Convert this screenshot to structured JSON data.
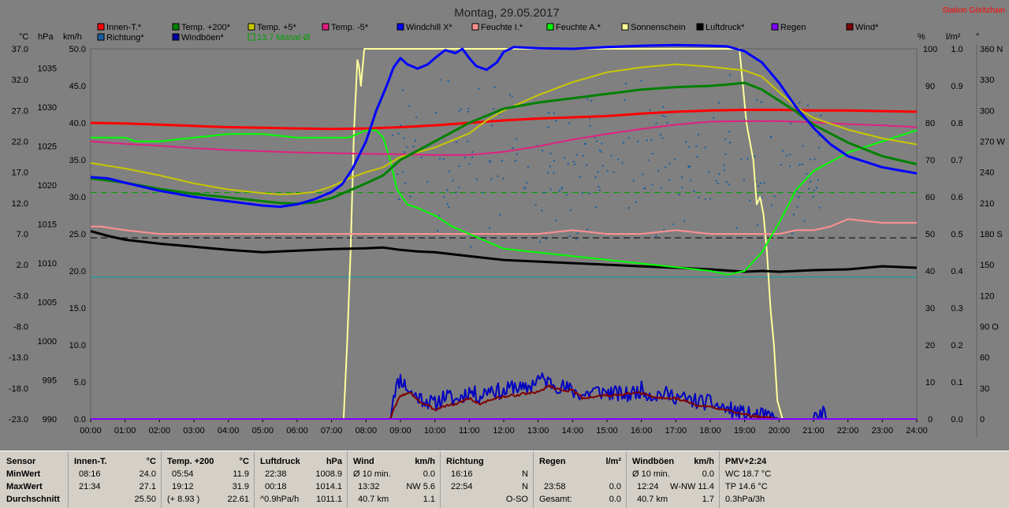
{
  "header": {
    "date": "Montag, 29.05.2017",
    "station": "Station Göritzhain"
  },
  "colors": {
    "background": "#808080",
    "plot_bg": "#808080",
    "innen": "#ff0000",
    "temp200": "#008000",
    "temp5": "#c8c800",
    "temp_minus5": "#e0207f",
    "windchill": "#0000ff",
    "feuchte_i": "#ff9090",
    "feuchte_a": "#00ff00",
    "sonne": "#ffff99",
    "luftdruck": "#000000",
    "regen": "#8000ff",
    "wind": "#800000",
    "richtung": "#1a5fa0",
    "windboeen": "#0000a0",
    "monat": "#00a000",
    "station_text": "#ff0000"
  },
  "legend": [
    {
      "label": "Innen-T.*",
      "color": "#ff0000"
    },
    {
      "label": "Temp. +200*",
      "color": "#008000"
    },
    {
      "label": "Temp. +5*",
      "color": "#c8c800"
    },
    {
      "label": "Temp. -5*",
      "color": "#e0207f"
    },
    {
      "label": "Windchill X*",
      "color": "#0000ff"
    },
    {
      "label": "Feuchte I.*",
      "color": "#ff9090"
    },
    {
      "label": "Feuchte A.*",
      "color": "#00ff00"
    },
    {
      "label": "Sonnenschein",
      "color": "#ffff99"
    },
    {
      "label": "Luftdruck*",
      "color": "#000000"
    },
    {
      "label": "Regen",
      "color": "#8000ff"
    },
    {
      "label": "Wind*",
      "color": "#800000"
    },
    {
      "label": "Richtung*",
      "color": "#1a5fa0"
    },
    {
      "label": "Windböen*",
      "color": "#0000a0"
    },
    {
      "label": "13.7 Monat-Ø",
      "color": "#00a000",
      "outline": true
    }
  ],
  "axis_units": {
    "temp": "°C",
    "pressure": "hPa",
    "wind": "km/h",
    "percent": "%",
    "rain": "l/m²",
    "deg": "°"
  },
  "chart_data": {
    "type": "line",
    "title": "Montag, 29.05.2017",
    "x_ticks": [
      "00:00",
      "01:00",
      "02:00",
      "03:00",
      "04:00",
      "05:00",
      "06:00",
      "07:00",
      "08:00",
      "09:00",
      "10:00",
      "11:00",
      "12:00",
      "13:00",
      "14:00",
      "15:00",
      "16:00",
      "17:00",
      "18:00",
      "19:00",
      "20:00",
      "21:00",
      "22:00",
      "23:00",
      "24:00"
    ],
    "xlim": [
      0,
      24
    ],
    "axes": {
      "temp_ticks": [
        "37.0",
        "32.0",
        "27.0",
        "22.0",
        "17.0",
        "12.0",
        "7.0",
        "2.0",
        "-3.0",
        "-8.0",
        "-13.0",
        "-18.0",
        "-23.0"
      ],
      "temp_range": [
        -23,
        37
      ],
      "hpa_ticks": [
        "1035",
        "1030",
        "1025",
        "1020",
        "1015",
        "1010",
        "1005",
        "1000",
        "995",
        "990"
      ],
      "hpa_range": [
        990,
        1037.5
      ],
      "wind_ticks": [
        "50.0",
        "45.0",
        "40.0",
        "35.0",
        "30.0",
        "25.0",
        "20.0",
        "15.0",
        "10.0",
        "5.0",
        "0.0"
      ],
      "wind_range": [
        0,
        50
      ],
      "pct_ticks": [
        "100",
        "90",
        "80",
        "70",
        "60",
        "50",
        "40",
        "30",
        "20",
        "10",
        "0"
      ],
      "pct_range": [
        0,
        100
      ],
      "rain_ticks": [
        "1.0",
        "0.9",
        "0.8",
        "0.7",
        "0.6",
        "0.5",
        "0.4",
        "0.3",
        "0.2",
        "0.1",
        "0.0"
      ],
      "rain_range": [
        0,
        1
      ],
      "deg_ticks": [
        "360 N",
        "330",
        "300",
        "270 W",
        "240",
        "210",
        "180 S",
        "150",
        "120",
        "90 O",
        "60",
        "30",
        "0"
      ],
      "deg_range": [
        0,
        360
      ]
    },
    "reference_lines": [
      {
        "axis": "temp",
        "y": 13.7,
        "color": "#00a000",
        "dash": true
      },
      {
        "axis": "hpa",
        "y": 1013.25,
        "color": "#000000",
        "dash": true
      },
      {
        "axis": "temp",
        "y": 0,
        "color": "#00a0a0",
        "dash": false
      }
    ],
    "series": [
      {
        "name": "Sonnenschein",
        "axis": "pct",
        "color": "#ffff99",
        "width": 2,
        "x": [
          0,
          7.35,
          7.45,
          7.55,
          7.65,
          7.75,
          7.8,
          7.85,
          7.9,
          7.95,
          8.0,
          18.85,
          18.95,
          19.05,
          19.15,
          19.25,
          19.35,
          19.45,
          19.55,
          19.65,
          19.75,
          19.85,
          19.95,
          20.1,
          24
        ],
        "y": [
          0,
          0,
          20,
          45,
          78,
          97,
          95,
          90,
          95,
          100,
          100,
          100,
          90,
          80,
          75,
          70,
          58,
          60,
          55,
          45,
          30,
          20,
          5,
          0,
          0
        ]
      },
      {
        "name": "Luftdruck*",
        "axis": "hpa",
        "color": "#000000",
        "width": 3,
        "x": [
          0,
          0.5,
          1,
          2,
          3,
          4,
          5,
          6,
          7,
          8,
          8.5,
          9,
          9.5,
          10,
          11,
          12,
          13,
          14,
          15,
          16,
          17,
          18,
          19,
          19.5,
          20,
          20.5,
          21,
          22,
          23,
          24
        ],
        "y": [
          1014.1,
          1013.5,
          1013.0,
          1012.5,
          1012.1,
          1011.7,
          1011.4,
          1011.6,
          1011.8,
          1011.9,
          1012.0,
          1011.7,
          1011.5,
          1011.4,
          1010.9,
          1010.4,
          1010.2,
          1010.0,
          1009.8,
          1009.6,
          1009.4,
          1009.2,
          1008.9,
          1009.0,
          1008.9,
          1009.0,
          1009.1,
          1009.2,
          1009.6,
          1009.4
        ]
      },
      {
        "name": "Feuchte I.*",
        "axis": "pct",
        "color": "#ff9090",
        "width": 2,
        "x": [
          0,
          0.3,
          1,
          2,
          3,
          4,
          5,
          6,
          7,
          8,
          9,
          10,
          11,
          12,
          13,
          14,
          15,
          16,
          17,
          18,
          19,
          20,
          20.5,
          21,
          21.5,
          22,
          23,
          24
        ],
        "y": [
          52,
          52,
          51,
          50,
          50,
          50,
          50,
          50,
          50,
          50,
          50,
          50,
          50,
          50,
          50,
          51,
          50,
          50,
          51,
          50,
          50,
          50,
          51,
          51,
          52,
          54,
          53,
          53
        ]
      },
      {
        "name": "Feuchte A.*",
        "axis": "pct",
        "color": "#00ff00",
        "width": 2,
        "x": [
          0,
          1,
          1.3,
          2,
          3,
          4,
          5,
          6,
          7,
          7.5,
          8,
          8.3,
          8.5,
          8.7,
          8.9,
          9.2,
          9.5,
          10,
          10.5,
          11,
          12,
          13,
          14,
          15,
          16,
          17,
          18,
          18.5,
          19,
          19.5,
          20,
          20.5,
          21,
          22,
          23,
          24
        ],
        "y": [
          76,
          76,
          75,
          75,
          76,
          77,
          77,
          76,
          76,
          76,
          78,
          78,
          76,
          70,
          62,
          58,
          57,
          55,
          52,
          50,
          46,
          45,
          44,
          43,
          42,
          41,
          40,
          39,
          40,
          45,
          53,
          62,
          67,
          72,
          75,
          78
        ]
      },
      {
        "name": "Innen-T.*",
        "axis": "temp",
        "color": "#ff0000",
        "width": 3,
        "x": [
          0,
          1,
          2,
          3,
          4,
          5,
          6,
          7,
          8,
          9,
          10,
          11,
          12,
          13,
          14,
          15,
          16,
          17,
          18,
          19,
          19.5,
          20,
          21,
          22,
          23,
          24
        ],
        "y": [
          25.0,
          24.9,
          24.7,
          24.5,
          24.3,
          24.2,
          24.1,
          24.0,
          24.1,
          24.3,
          24.6,
          25.0,
          25.4,
          25.7,
          25.9,
          26.1,
          26.5,
          26.8,
          27.0,
          27.1,
          27.1,
          27.1,
          27.0,
          27.0,
          26.9,
          26.8
        ]
      },
      {
        "name": "Temp. -5*",
        "axis": "temp",
        "color": "#e0207f",
        "width": 2,
        "x": [
          0,
          1,
          2,
          3,
          4,
          5,
          6,
          7,
          8,
          9,
          10,
          11,
          12,
          13,
          14,
          15,
          16,
          17,
          18,
          19,
          20,
          21,
          22,
          23,
          24
        ],
        "y": [
          22.0,
          21.6,
          21.3,
          20.9,
          20.6,
          20.4,
          20.2,
          20.1,
          20.0,
          19.9,
          19.8,
          19.8,
          20.3,
          21.2,
          22.3,
          23.2,
          24.0,
          24.7,
          25.2,
          25.3,
          25.3,
          25.1,
          24.8,
          24.6,
          24.3
        ]
      },
      {
        "name": "Temp. +5*",
        "axis": "temp",
        "color": "#c8c800",
        "width": 2,
        "x": [
          0,
          1,
          2,
          3,
          4,
          5,
          5.5,
          6,
          6.5,
          7,
          7.5,
          8,
          8.5,
          9,
          10,
          11,
          11.5,
          12,
          13,
          14,
          15,
          16,
          17,
          18,
          18.5,
          19,
          19.5,
          20,
          20.5,
          21,
          22,
          23,
          24
        ],
        "y": [
          18.5,
          17.6,
          16.5,
          15.2,
          14.2,
          13.6,
          13.4,
          13.5,
          13.8,
          14.7,
          16.0,
          17.0,
          17.8,
          19.5,
          21.0,
          23.3,
          25.4,
          27.0,
          29.5,
          31.6,
          33.2,
          34.0,
          34.5,
          34.1,
          33.8,
          33.5,
          32.5,
          30.0,
          27.5,
          25.8,
          23.9,
          22.5,
          21.5
        ]
      },
      {
        "name": "Temp. +200*",
        "axis": "temp",
        "color": "#008000",
        "width": 3,
        "x": [
          0,
          1,
          2,
          3,
          4,
          5,
          5.5,
          6,
          6.5,
          7,
          7.5,
          8,
          8.5,
          9,
          10,
          11,
          12,
          13,
          14,
          15,
          16,
          17,
          18,
          18.5,
          19,
          19.5,
          20,
          20.5,
          21,
          22,
          23,
          24
        ],
        "y": [
          16.0,
          15.3,
          14.3,
          13.5,
          12.9,
          12.3,
          12.0,
          11.9,
          12.1,
          12.8,
          14.0,
          15.2,
          16.5,
          19.0,
          22.0,
          25.0,
          27.3,
          28.3,
          29.0,
          29.7,
          30.4,
          30.8,
          31.0,
          31.2,
          31.5,
          30.4,
          28.6,
          26.8,
          24.7,
          21.8,
          19.6,
          18.3
        ]
      },
      {
        "name": "Windchill X*",
        "axis": "temp",
        "color": "#0000ff",
        "width": 3,
        "x": [
          0,
          0.5,
          1,
          2,
          3,
          4,
          5,
          5.5,
          6,
          6.5,
          7,
          7.3,
          7.6,
          8,
          8.3,
          8.6,
          8.8,
          9.0,
          9.2,
          9.5,
          9.8,
          10.0,
          10.3,
          10.6,
          10.8,
          11.0,
          11.2,
          11.5,
          11.8,
          12.0,
          12.3,
          13,
          14,
          15,
          16,
          17,
          18,
          18.5,
          19,
          19.5,
          20,
          20.5,
          21,
          21.5,
          22,
          23,
          24
        ],
        "y": [
          16.2,
          16.0,
          15.3,
          14.0,
          13.0,
          12.3,
          11.6,
          11.4,
          11.8,
          12.6,
          13.8,
          15.0,
          17.5,
          22.0,
          27.0,
          31.0,
          34.0,
          35.5,
          34.5,
          33.8,
          34.5,
          35.5,
          36.8,
          36.3,
          37.0,
          35.5,
          34.2,
          33.6,
          34.8,
          36.5,
          37.3,
          37.1,
          37.0,
          37.3,
          37.5,
          37.6,
          37.5,
          37.4,
          36.6,
          34.8,
          31.5,
          27.5,
          24.2,
          21.5,
          19.6,
          17.8,
          16.8
        ]
      },
      {
        "name": "Windböen*",
        "axis": "wind",
        "color": "#0000c0",
        "width": 2,
        "noise": 2.2,
        "seed": 11,
        "x": [
          0,
          8.7,
          8.8,
          9.0,
          9.3,
          9.6,
          10.0,
          10.3,
          10.6,
          11.0,
          11.3,
          11.6,
          12.0,
          12.3,
          12.6,
          13.0,
          13.3,
          13.6,
          14.0,
          14.3,
          14.6,
          15.0,
          15.3,
          15.6,
          16.0,
          16.3,
          16.6,
          17.0,
          17.3,
          17.6,
          18.0,
          18.3,
          18.6,
          18.9,
          19.2,
          19.5,
          19.8,
          20.0,
          21.0,
          21.3,
          21.4,
          24
        ],
        "y": [
          0,
          0,
          3.5,
          5.5,
          3.5,
          2.8,
          2.0,
          3.2,
          2.5,
          3.8,
          3.0,
          4.2,
          3.5,
          4.6,
          3.8,
          5.5,
          5.0,
          4.5,
          3.8,
          3.2,
          3.8,
          3.6,
          3.4,
          3.2,
          4.0,
          3.2,
          3.4,
          3.1,
          2.6,
          2.4,
          2.2,
          1.6,
          1.2,
          0.8,
          0.5,
          0.4,
          0.2,
          0,
          0,
          0.8,
          0,
          0
        ]
      },
      {
        "name": "Wind*",
        "axis": "wind",
        "color": "#800000",
        "width": 2,
        "noise": 0.35,
        "seed": 3,
        "x": [
          0,
          8.7,
          8.8,
          9.0,
          9.3,
          9.6,
          10.0,
          10.3,
          10.6,
          11.0,
          11.3,
          11.6,
          12.0,
          12.3,
          12.6,
          13.0,
          13.3,
          13.6,
          14.0,
          14.3,
          14.6,
          15.0,
          15.3,
          15.6,
          16.0,
          16.3,
          16.6,
          17.0,
          17.3,
          17.6,
          18.0,
          18.3,
          18.6,
          18.9,
          19.2,
          19.5,
          19.8,
          20.0,
          24
        ],
        "y": [
          0,
          0,
          1.2,
          3.2,
          3.5,
          2.2,
          1.3,
          1.8,
          2.0,
          2.8,
          2.0,
          2.6,
          3.0,
          3.2,
          3.4,
          3.6,
          4.5,
          4.0,
          3.8,
          2.8,
          3.0,
          3.2,
          3.2,
          3.4,
          3.5,
          3.0,
          2.8,
          2.8,
          2.4,
          1.8,
          1.6,
          1.4,
          1.2,
          0.6,
          0.4,
          0.3,
          0.1,
          0,
          0
        ]
      },
      {
        "name": "Regen",
        "axis": "rain",
        "color": "#8000ff",
        "width": 2,
        "x": [
          0,
          7.5,
          24
        ],
        "y": [
          0,
          0,
          0
        ]
      }
    ],
    "richtung_scatter": {
      "axis": "deg",
      "color": "#1a5fa0",
      "start": 8.7,
      "end": 21.2,
      "count": 260,
      "center": 255,
      "spread": 90,
      "seed": 7
    }
  },
  "stats": {
    "sensor": {
      "title": "Sensor",
      "min": "MinWert",
      "max": "MaxWert",
      "avg": "Durchschnitt"
    },
    "innen": {
      "title": "Innen-T.",
      "unit": "°C",
      "min_time": "08:16",
      "min": "24.0",
      "max_time": "21:34",
      "max": "27.1",
      "avg": "25.50"
    },
    "temp200": {
      "title": "Temp. +200",
      "unit": "°C",
      "min_time": "05:54",
      "min": "11.9",
      "max_time": "19:12",
      "max": "31.9",
      "avg_extra": "(+ 8.93 )",
      "avg": "22.61"
    },
    "luftdruck": {
      "title": "Luftdruck",
      "unit": "hPa",
      "min_time": "22:38",
      "min": "1008.9",
      "max_time": "00:18",
      "max": "1014.1",
      "avg_extra": "^0.9hPa/h",
      "avg": "1011.1"
    },
    "wind": {
      "title": "Wind",
      "unit": "km/h",
      "min_label": "Ø 10 min.",
      "min": "0.0",
      "max_time": "13:32",
      "max": "NW 5.6",
      "avg_extra": "40.7 km",
      "avg": "1.1"
    },
    "richtung": {
      "title": "Richtung",
      "min_time": "16:16",
      "min": "N",
      "max_time": "22:54",
      "max": "N",
      "avg": "O-SO"
    },
    "regen": {
      "title": "Regen",
      "unit": "l/m²",
      "max_time": "23:58",
      "max": "0.0",
      "avg_label": "Gesamt:",
      "avg": "0.0"
    },
    "windboeen": {
      "title": "Windböen",
      "unit": "km/h",
      "min_label": "Ø 10 min.",
      "min": "0.0",
      "max_time": "12:24",
      "max": "W-NW 11.4",
      "avg_extra": "40.7 km",
      "avg": "1.7"
    },
    "pmv": {
      "title": "PMV+2:24",
      "min": "WC 18.7 °C",
      "max": "TP 14.6 °C",
      "avg": "0.3hPa/3h"
    }
  }
}
